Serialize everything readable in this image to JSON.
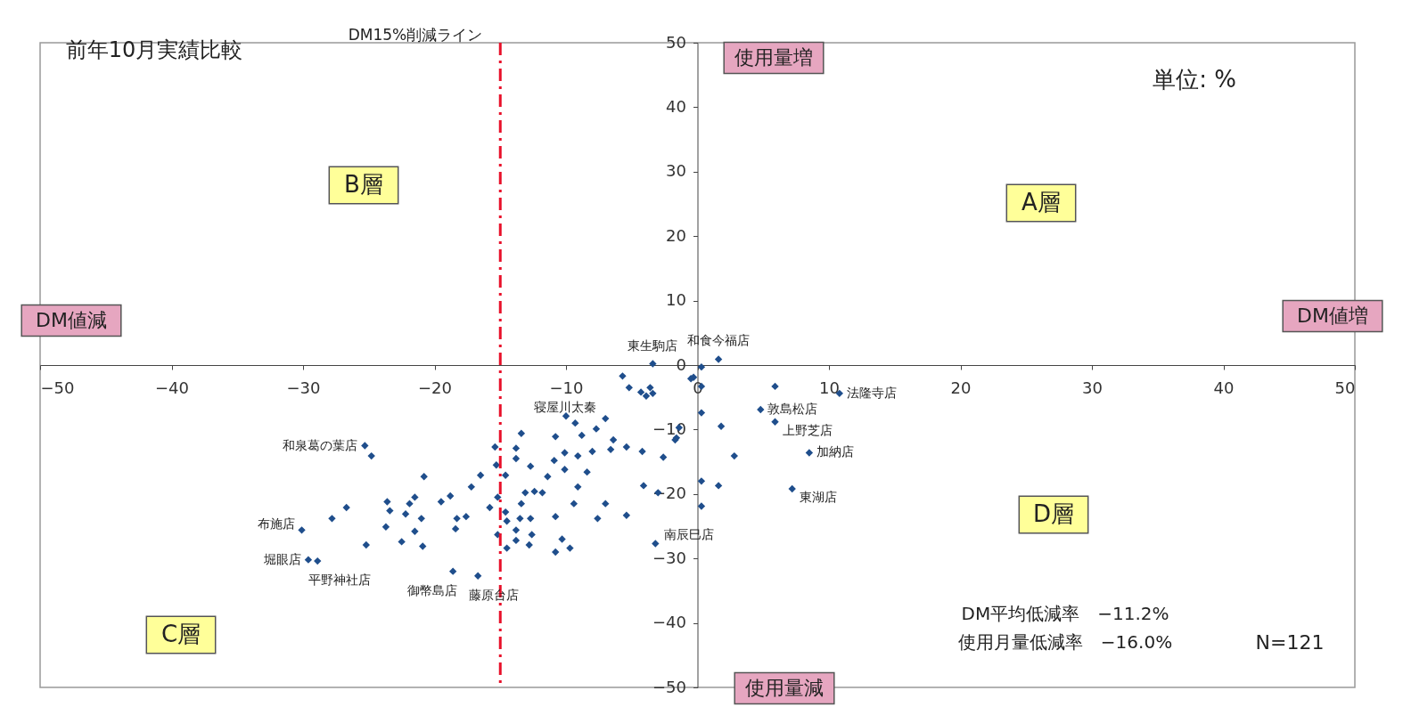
{
  "chart_data": {
    "type": "scatter",
    "title": "前年10月実績比較",
    "x": [
      -3.4,
      -5.7,
      -5.2,
      -4.3,
      -3.6,
      -3.9,
      -3.4,
      -7.0,
      -10.0,
      -9.3,
      -7.7,
      -8.8,
      -6.4,
      -5.4,
      -6.6,
      -10.8,
      -10.1,
      -9.1,
      -8.0,
      -10.9,
      -10.1,
      -8.4,
      -11.4,
      -13.4,
      -13.8,
      -13.8,
      -12.7,
      -15.4,
      -15.3,
      -14.6,
      -9.1,
      -12.4,
      -11.8,
      -13.1,
      -13.4,
      -15.2,
      -15.8,
      -16.5,
      -17.2,
      -18.8,
      -19.5,
      -20.8,
      -21.5,
      -21.9,
      -23.6,
      -23.4,
      -22.2,
      -21.0,
      -23.7,
      -21.5,
      -22.5,
      -20.9,
      -25.2,
      -26.7,
      -27.8,
      -30.1,
      -29.6,
      -28.9,
      -25.3,
      -24.8,
      -18.3,
      -17.6,
      -18.4,
      -14.6,
      -14.5,
      -13.5,
      -12.7,
      -15.2,
      -13.8,
      -12.6,
      -13.8,
      -12.8,
      -14.5,
      -10.8,
      -9.4,
      -10.3,
      -9.7,
      -10.8,
      -7.0,
      -7.6,
      -5.4,
      -4.1,
      -2.6,
      -1.7,
      -1.4,
      -3.2,
      -18.6,
      -16.7,
      -0.5,
      -4.2,
      1.6,
      0.3,
      -0.3,
      0.3,
      5.9,
      10.8,
      4.8,
      0.3,
      5.9,
      1.8,
      -1.6,
      8.5,
      2.8,
      0.3,
      1.6,
      7.2,
      0.3,
      -3.0
    ],
    "values": [
      0.2,
      -1.7,
      -3.5,
      -4.2,
      -3.5,
      -4.8,
      -4.4,
      -8.3,
      -7.9,
      -9.0,
      -9.9,
      -10.9,
      -11.6,
      -12.7,
      -13.1,
      -11.1,
      -13.6,
      -14.1,
      -13.4,
      -14.8,
      -16.2,
      -16.6,
      -17.3,
      -10.6,
      -12.9,
      -14.5,
      -15.7,
      -12.7,
      -15.5,
      -17.1,
      -18.9,
      -19.6,
      -19.8,
      -19.8,
      -21.5,
      -20.5,
      -22.1,
      -17.1,
      -18.9,
      -20.3,
      -21.2,
      -17.3,
      -20.5,
      -21.5,
      -21.2,
      -22.6,
      -23.1,
      -23.8,
      -25.1,
      -25.8,
      -27.4,
      -28.1,
      -27.9,
      -22.1,
      -23.8,
      -25.6,
      -30.2,
      -30.4,
      -12.5,
      -14.1,
      -23.8,
      -23.5,
      -25.4,
      -22.8,
      -24.2,
      -23.8,
      -23.8,
      -26.3,
      -25.6,
      -26.3,
      -27.2,
      -27.9,
      -28.4,
      -23.5,
      -21.5,
      -27.0,
      -28.4,
      -29.0,
      -21.5,
      -23.8,
      -23.3,
      -18.7,
      -14.3,
      -11.6,
      -9.7,
      -27.7,
      -32.0,
      -32.7,
      -2.1,
      -13.4,
      0.9,
      -0.3,
      -1.9,
      -3.3,
      -3.3,
      -4.4,
      -6.9,
      -7.4,
      -8.8,
      -9.5,
      -11.3,
      -13.6,
      -14.1,
      -18.0,
      -18.7,
      -19.2,
      -21.9,
      -19.8
    ],
    "color": "#1f4e8c",
    "marker": "diamond",
    "grid": false,
    "xlim": [
      -50,
      50
    ],
    "ylim": [
      -50,
      50
    ],
    "xticks": [
      -50,
      -40,
      -30,
      -20,
      -10,
      0,
      10,
      20,
      30,
      40,
      50
    ],
    "yticks": [
      -50,
      -40,
      -30,
      -20,
      -10,
      0,
      10,
      20,
      30,
      40,
      50
    ],
    "ref_lines": [
      {
        "axis": "x",
        "value": -15,
        "label": "DM15%削減ライン",
        "color": "#e8102a",
        "line_style": "dashed"
      }
    ],
    "annotations": [
      "使用量増",
      "使用量減",
      "DM値減",
      "DM値増",
      "A層",
      "B層",
      "C層",
      "D層",
      "単位: %",
      "DM平均低減率　−11.2%",
      "使用月量低減率　−16.0%",
      "N=121",
      {
        "text": "東生駒店",
        "x": -3.4,
        "y": 0.2
      },
      {
        "text": "和食今福店",
        "x": 1.6,
        "y": 0.9
      },
      {
        "text": "寝屋川太秦",
        "x": -7.0,
        "y": -8.3
      },
      {
        "text": "法隆寺店",
        "x": 10.8,
        "y": -4.4
      },
      {
        "text": "敦島松店",
        "x": 4.8,
        "y": -6.9
      },
      {
        "text": "上野芝店",
        "x": 5.9,
        "y": -8.8
      },
      {
        "text": "加納店",
        "x": 8.5,
        "y": -13.6
      },
      {
        "text": "東湖店",
        "x": 7.2,
        "y": -19.2
      },
      {
        "text": "南辰巳店",
        "x": -3.2,
        "y": -27.7
      },
      {
        "text": "和泉葛の葉店",
        "x": -25.3,
        "y": -12.5
      },
      {
        "text": "布施店",
        "x": -30.1,
        "y": -25.6
      },
      {
        "text": "堀眼店",
        "x": -29.6,
        "y": -30.2
      },
      {
        "text": "平野神社店",
        "x": -28.9,
        "y": -30.4
      },
      {
        "text": "御幣島店",
        "x": -18.6,
        "y": -32.0
      },
      {
        "text": "藤原台店",
        "x": -16.7,
        "y": -32.7
      }
    ]
  }
}
